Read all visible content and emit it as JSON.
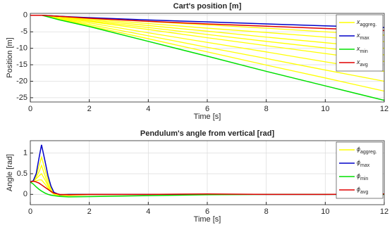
{
  "chart_data": [
    {
      "type": "line",
      "title": "Cart's position [m]",
      "xlabel": "Time [s]",
      "ylabel": "Position [m]",
      "x": [
        0,
        0.4,
        1,
        2,
        4,
        6,
        8,
        10,
        12
      ],
      "xlim": [
        0,
        12
      ],
      "xticks": [
        0,
        2,
        4,
        6,
        8,
        10,
        12
      ],
      "ylim": [
        -26.3,
        0.6
      ],
      "yticks": [
        0,
        -5,
        -10,
        -15,
        -20,
        -25
      ],
      "grid": true,
      "legend": "upper right",
      "series": [
        {
          "name": "x",
          "subscript": "aggreg.",
          "color": "#ffff00",
          "lines": [
            [
              0,
              0,
              -0.3,
              -0.8,
              -1.9,
              -2.9,
              -3.9,
              -5,
              -6
            ],
            [
              0,
              0,
              -0.4,
              -1.1,
              -2.5,
              -3.9,
              -5.2,
              -6.6,
              -8
            ],
            [
              0,
              0,
              -0.5,
              -1.4,
              -3.1,
              -4.8,
              -6.6,
              -8.3,
              -10
            ],
            [
              0,
              0,
              -0.6,
              -1.7,
              -3.7,
              -5.8,
              -7.9,
              -9.9,
              -12
            ],
            [
              0,
              0,
              -0.7,
              -1.9,
              -4.3,
              -6.8,
              -9.2,
              -11.6,
              -14
            ],
            [
              0,
              0,
              -0.9,
              -2.3,
              -5.3,
              -8.2,
              -11.1,
              -14.1,
              -17
            ],
            [
              0,
              0,
              -1,
              -2.8,
              -6.2,
              -9.7,
              -13.1,
              -16.6,
              -20
            ],
            [
              0,
              0,
              -1.2,
              -3.2,
              -7.1,
              -11.1,
              -15.1,
              -19,
              -23
            ]
          ]
        },
        {
          "name": "x",
          "subscript": "max",
          "color": "#0000c8",
          "values": [
            0,
            0,
            -0.3,
            -0.7,
            -1.4,
            -2,
            -2.6,
            -3.2,
            -3.7
          ]
        },
        {
          "name": "x",
          "subscript": "min",
          "color": "#00e000",
          "values": [
            0,
            0,
            -1.4,
            -3.4,
            -7.9,
            -12.4,
            -17,
            -21.4,
            -25.8
          ]
        },
        {
          "name": "x",
          "subscript": "avg",
          "color": "#e00000",
          "values": [
            0,
            0,
            -0.3,
            -0.9,
            -1.8,
            -2.6,
            -3.3,
            -4,
            -4.6
          ]
        }
      ]
    },
    {
      "type": "line",
      "title": "Pendulum's angle from vertical [rad]",
      "xlabel": "Time [s]",
      "ylabel": "Angle [rad]",
      "x": [
        0,
        0.1,
        0.2,
        0.3,
        0.38,
        0.5,
        0.6,
        0.7,
        0.8,
        1,
        1.3,
        2,
        4,
        6,
        8,
        10,
        12
      ],
      "xlim": [
        0,
        12
      ],
      "xticks": [
        0,
        2,
        4,
        6,
        8,
        10,
        12
      ],
      "ylim": [
        -0.25,
        1.3
      ],
      "yticks": [
        0,
        0.5,
        1
      ],
      "grid": true,
      "legend": "upper right",
      "series": [
        {
          "name": "ϕ",
          "subscript": "aggreg.",
          "color": "#ffff00",
          "lines": [
            [
              0.3,
              0.33,
              0.45,
              0.7,
              0.9,
              0.6,
              0.35,
              0.15,
              0.04,
              -0.01,
              0,
              0,
              0,
              0,
              0,
              0,
              0
            ],
            [
              0.3,
              0.33,
              0.42,
              0.55,
              0.7,
              0.45,
              0.25,
              0.1,
              0.02,
              -0.01,
              0,
              0,
              0,
              0,
              0,
              0,
              0
            ],
            [
              0.3,
              0.32,
              0.38,
              0.45,
              0.5,
              0.35,
              0.2,
              0.08,
              0.01,
              -0.02,
              -0.01,
              0,
              0,
              0,
              0,
              0,
              0
            ],
            [
              0.3,
              0.31,
              0.33,
              0.35,
              0.35,
              0.25,
              0.15,
              0.06,
              0,
              -0.03,
              -0.03,
              -0.01,
              0,
              0,
              0,
              0,
              0
            ]
          ]
        },
        {
          "name": "ϕ",
          "subscript": "max",
          "color": "#0000c8",
          "values": [
            0.3,
            0.33,
            0.5,
            0.9,
            1.2,
            0.8,
            0.45,
            0.2,
            0.05,
            -0.01,
            0,
            0,
            0,
            0,
            0,
            0,
            0
          ]
        },
        {
          "name": "ϕ",
          "subscript": "min",
          "color": "#00e000",
          "values": [
            0.3,
            0.25,
            0.18,
            0.12,
            0.08,
            0.03,
            0,
            -0.02,
            -0.03,
            -0.05,
            -0.06,
            -0.055,
            -0.03,
            -0.01,
            0,
            0,
            0
          ]
        },
        {
          "name": "ϕ",
          "subscript": "avg",
          "color": "#e00000",
          "values": [
            0.3,
            0.32,
            0.3,
            0.27,
            0.23,
            0.17,
            0.12,
            0.07,
            0.03,
            0,
            -0.01,
            0,
            0,
            0.01,
            0,
            0,
            0.01
          ]
        }
      ]
    }
  ]
}
